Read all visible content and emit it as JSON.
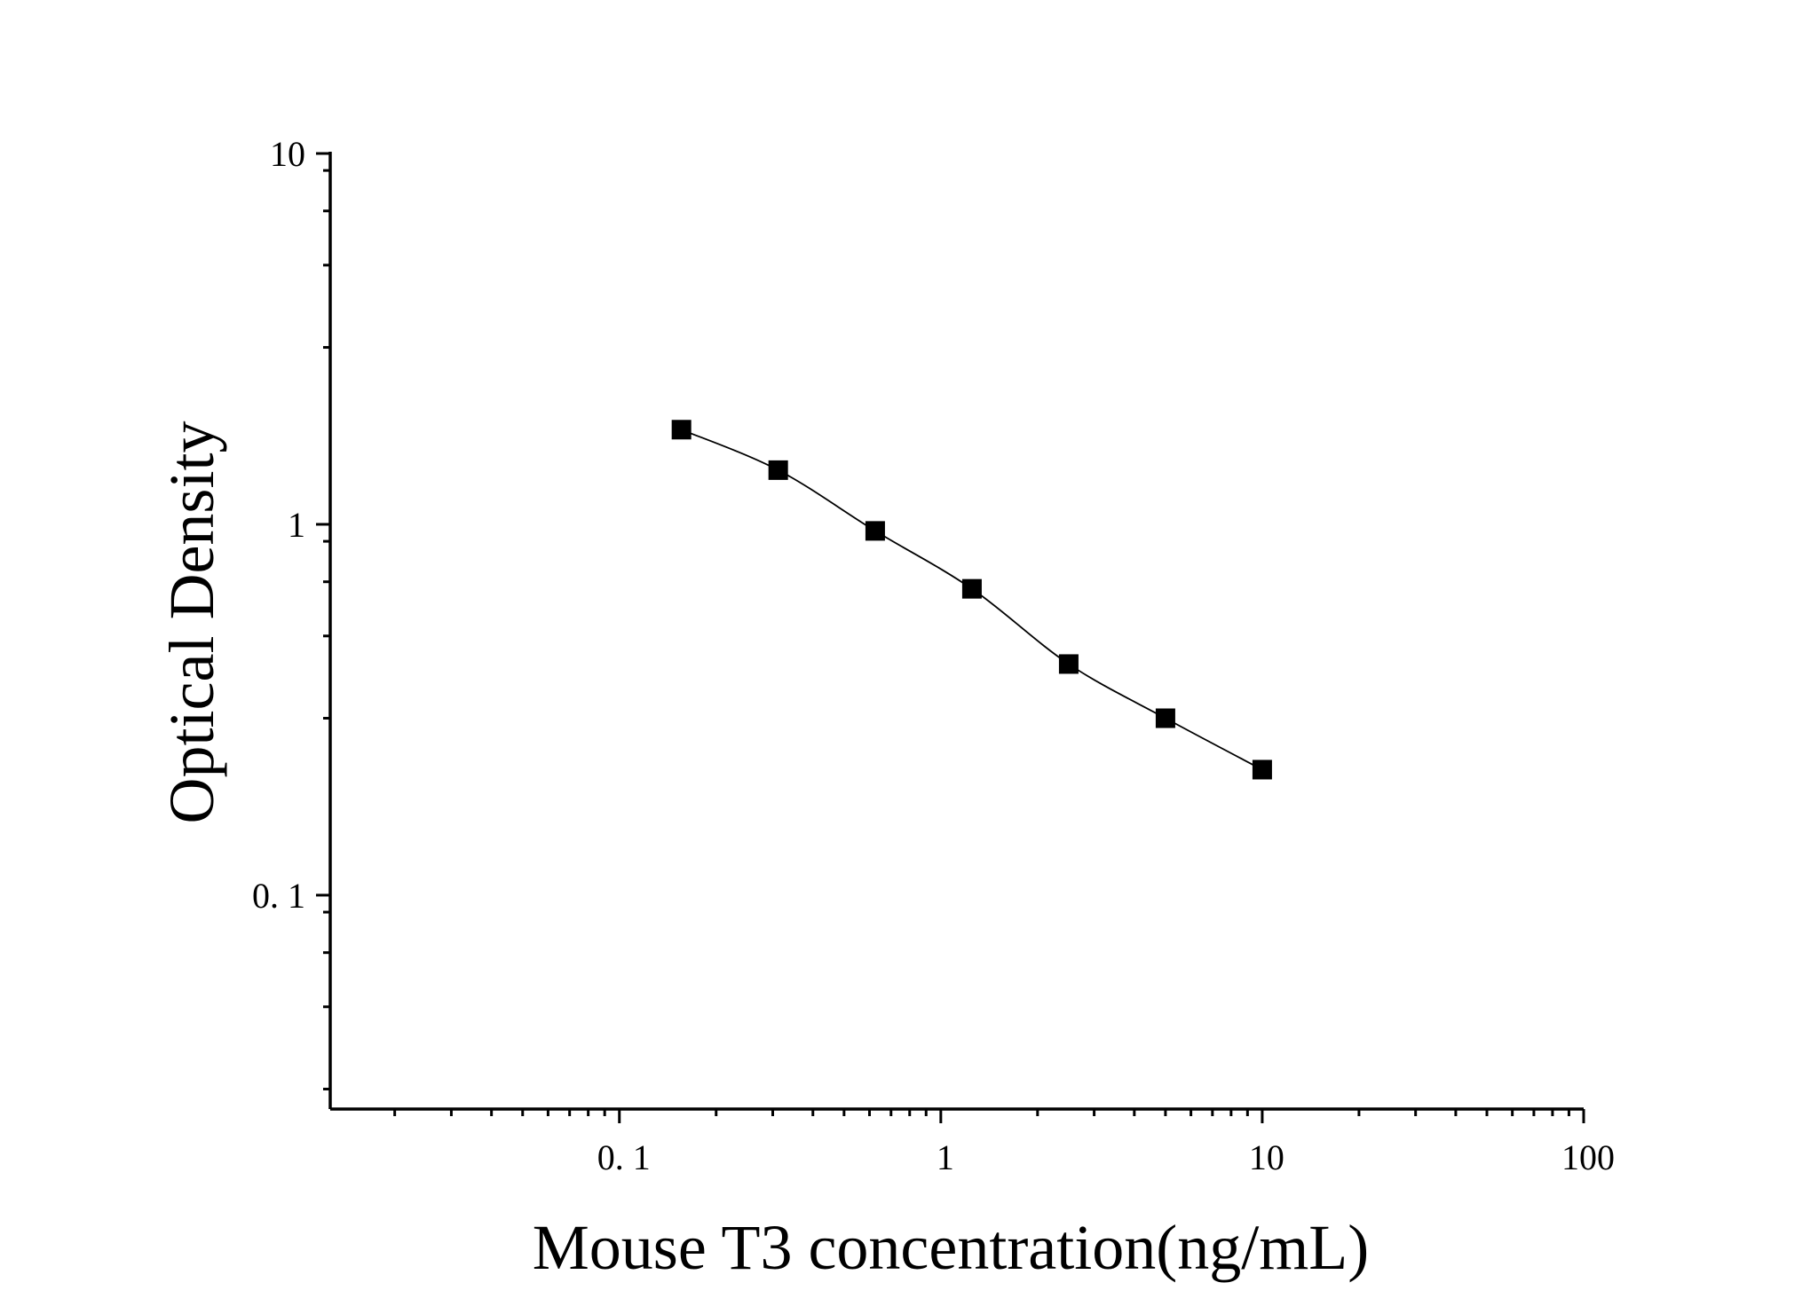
{
  "chart_data": {
    "type": "scatter",
    "xlabel": "Mouse T3 concentration(ng/mL)",
    "ylabel": "Optical Density",
    "xscale": "log",
    "yscale": "log",
    "xlim": [
      0.0126,
      100
    ],
    "ylim": [
      0.0265,
      10
    ],
    "xticks": [
      {
        "value": 0.1,
        "label": "0. 1"
      },
      {
        "value": 1,
        "label": "1"
      },
      {
        "value": 10,
        "label": "10"
      },
      {
        "value": 100,
        "label": "100"
      }
    ],
    "yticks": [
      {
        "value": 0.1,
        "label": "0. 1"
      },
      {
        "value": 1,
        "label": "1"
      },
      {
        "value": 10,
        "label": "10"
      }
    ],
    "marker": "square",
    "fit_line": true,
    "series": [
      {
        "x": [
          0.156,
          0.312,
          0.625,
          1.25,
          2.5,
          5,
          10
        ],
        "y": [
          1.8,
          1.4,
          0.96,
          0.67,
          0.42,
          0.3,
          0.218
        ]
      }
    ],
    "grid": false,
    "legend": "none"
  }
}
